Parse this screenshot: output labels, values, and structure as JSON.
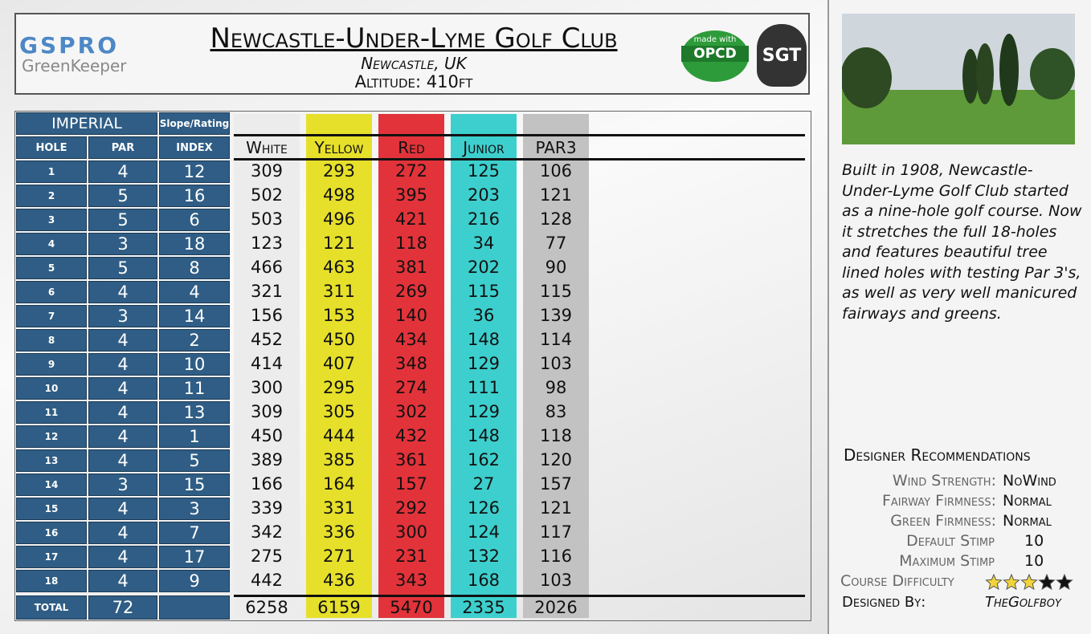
{
  "header": {
    "logo": {
      "brand": "GSPRO",
      "product": "GreenKeeper"
    },
    "title": "Newcastle-Under-Lyme Golf Club",
    "location": "Newcastle, UK",
    "altitude": "Altitude: 410ft",
    "badges": [
      "made with",
      "OPCD",
      "SGT"
    ]
  },
  "table": {
    "group_header": "IMPERIAL",
    "slope_header": "Slope/Rating",
    "columns": [
      "HOLE",
      "PAR",
      "INDEX",
      "White",
      "Yellow",
      "Red",
      "Junior",
      "PAR3"
    ],
    "rows": [
      [
        1,
        4,
        12,
        309,
        293,
        272,
        125,
        106
      ],
      [
        2,
        5,
        16,
        502,
        498,
        395,
        203,
        121
      ],
      [
        3,
        5,
        6,
        503,
        496,
        421,
        216,
        128
      ],
      [
        4,
        3,
        18,
        123,
        121,
        118,
        34,
        77
      ],
      [
        5,
        5,
        8,
        466,
        463,
        381,
        202,
        90
      ],
      [
        6,
        4,
        4,
        321,
        311,
        269,
        115,
        115
      ],
      [
        7,
        3,
        14,
        156,
        153,
        140,
        36,
        139
      ],
      [
        8,
        4,
        2,
        452,
        450,
        434,
        148,
        114
      ],
      [
        9,
        4,
        10,
        414,
        407,
        348,
        129,
        103
      ],
      [
        10,
        4,
        11,
        300,
        295,
        274,
        111,
        98
      ],
      [
        11,
        4,
        13,
        309,
        305,
        302,
        129,
        83
      ],
      [
        12,
        4,
        1,
        450,
        444,
        432,
        148,
        118
      ],
      [
        13,
        4,
        5,
        389,
        385,
        361,
        162,
        120
      ],
      [
        14,
        3,
        15,
        166,
        164,
        157,
        27,
        157
      ],
      [
        15,
        4,
        3,
        339,
        331,
        292,
        126,
        121
      ],
      [
        16,
        4,
        7,
        342,
        336,
        300,
        124,
        117
      ],
      [
        17,
        4,
        17,
        275,
        271,
        231,
        132,
        116
      ],
      [
        18,
        4,
        9,
        442,
        436,
        343,
        168,
        103
      ]
    ],
    "total": {
      "label": "TOTAL",
      "par": 72,
      "tees": [
        6258,
        6159,
        5470,
        2335,
        2026
      ]
    }
  },
  "description": "Built in 1908, Newcastle-Under-Lyme Golf Club started as a nine-hole golf course. Now it stretches the full 18-holes and features beautiful tree lined holes with testing Par 3's, as well as very well manicured fairways and greens.",
  "recommendations": {
    "title": "Designer Recommendations",
    "items": [
      {
        "label": "Wind Strength:",
        "value": "NoWind"
      },
      {
        "label": "Fairway Firmness:",
        "value": "Normal"
      },
      {
        "label": "Green Firmness:",
        "value": "Normal"
      },
      {
        "label": "Default Stimp",
        "value": 10
      },
      {
        "label": "Maximum Stimp",
        "value": 10
      }
    ],
    "difficulty": {
      "label": "Course Difficulty",
      "stars": 3,
      "max": 5
    },
    "designer": {
      "label": "Designed By:",
      "value": "TheGolfboy"
    }
  }
}
